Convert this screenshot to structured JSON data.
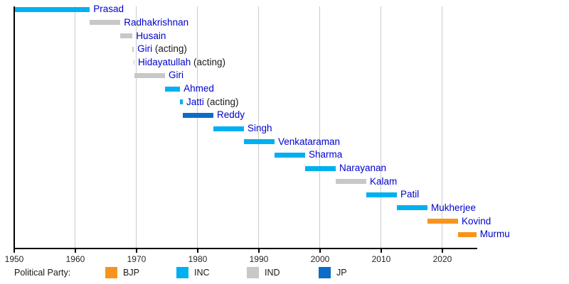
{
  "chart_data": {
    "type": "gantt",
    "description": "Timeline of terms by person, colored by political party",
    "x_axis": {
      "tick_years": [
        1950,
        1960,
        1970,
        1980,
        1990,
        2000,
        2010,
        2020
      ],
      "tick_labels": [
        "1950",
        "1960",
        "1970",
        "1980",
        "1990",
        "2000",
        "2010",
        "2020"
      ],
      "range": [
        1950,
        2025.7
      ],
      "grid": true
    },
    "acting_suffix": "(acting)",
    "bars": [
      {
        "name": "Prasad",
        "party": "INC",
        "start": 1950.07,
        "end": 1962.36,
        "acting": false
      },
      {
        "name": "Radhakrishnan",
        "party": "IND",
        "start": 1962.36,
        "end": 1967.36,
        "acting": false
      },
      {
        "name": "Husain",
        "party": "IND",
        "start": 1967.36,
        "end": 1969.34,
        "acting": false
      },
      {
        "name": "Giri",
        "party": "IND",
        "start": 1969.34,
        "end": 1969.55,
        "acting": true
      },
      {
        "name": "Hidayatullah",
        "party": "IND",
        "start": 1969.55,
        "end": 1969.65,
        "acting": true
      },
      {
        "name": "Giri",
        "party": "IND",
        "start": 1969.65,
        "end": 1974.65,
        "acting": false
      },
      {
        "name": "Ahmed",
        "party": "INC",
        "start": 1974.65,
        "end": 1977.11,
        "acting": false
      },
      {
        "name": "Jatti",
        "party": "INC",
        "start": 1977.11,
        "end": 1977.56,
        "acting": true
      },
      {
        "name": "Reddy",
        "party": "JP",
        "start": 1977.56,
        "end": 1982.56,
        "acting": false
      },
      {
        "name": "Singh",
        "party": "INC",
        "start": 1982.56,
        "end": 1987.56,
        "acting": false
      },
      {
        "name": "Venkataraman",
        "party": "INC",
        "start": 1987.56,
        "end": 1992.56,
        "acting": false
      },
      {
        "name": "Sharma",
        "party": "INC",
        "start": 1992.56,
        "end": 1997.56,
        "acting": false
      },
      {
        "name": "Narayanan",
        "party": "INC",
        "start": 1997.56,
        "end": 2002.56,
        "acting": false
      },
      {
        "name": "Kalam",
        "party": "IND",
        "start": 2002.56,
        "end": 2007.56,
        "acting": false
      },
      {
        "name": "Patil",
        "party": "INC",
        "start": 2007.56,
        "end": 2012.56,
        "acting": false
      },
      {
        "name": "Mukherjee",
        "party": "INC",
        "start": 2012.56,
        "end": 2017.56,
        "acting": false
      },
      {
        "name": "Kovind",
        "party": "BJP",
        "start": 2017.56,
        "end": 2022.56,
        "acting": false
      },
      {
        "name": "Murmu",
        "party": "BJP",
        "start": 2022.56,
        "end": 2025.55,
        "acting": false
      }
    ],
    "legend": {
      "title": "Political Party:",
      "entries": [
        {
          "label": "BJP",
          "color": "#F7941E"
        },
        {
          "label": "INC",
          "color": "#00B0F0"
        },
        {
          "label": "IND",
          "color": "#C8C8C8"
        },
        {
          "label": "JP",
          "color": "#0C6CC8"
        }
      ]
    },
    "colors": {
      "name_link": "#0000CD",
      "acting_text": "#1a1a1a",
      "axis": "#000000",
      "grid": "#cccccc",
      "tick_label": "#262626",
      "legend_text": "#1a1a1a",
      "background": "#ffffff"
    }
  }
}
